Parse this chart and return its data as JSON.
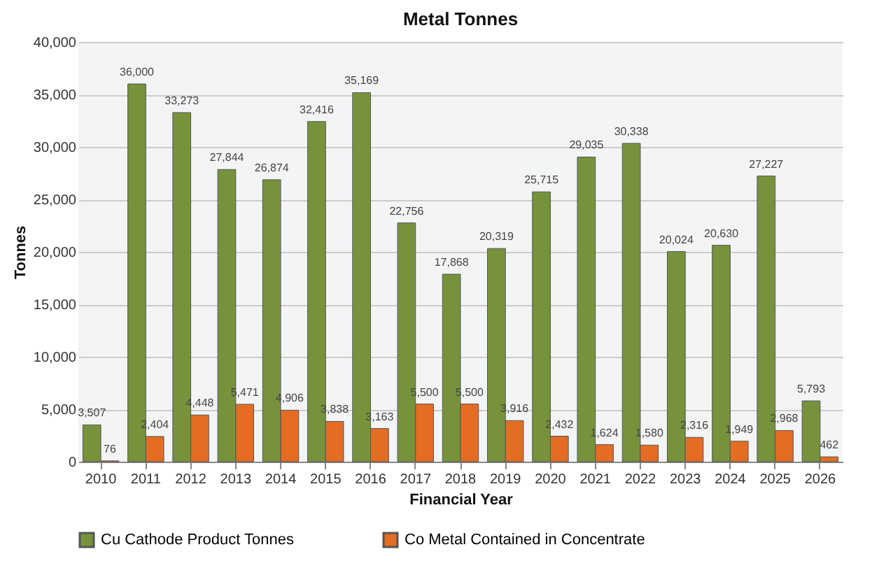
{
  "chart_data": {
    "type": "bar",
    "title": "Metal Tonnes",
    "xlabel": "Financial Year",
    "ylabel": "Tonnes",
    "categories": [
      "2010",
      "2011",
      "2012",
      "2013",
      "2014",
      "2015",
      "2016",
      "2017",
      "2018",
      "2019",
      "2020",
      "2021",
      "2022",
      "2023",
      "2024",
      "2025",
      "2026"
    ],
    "series": [
      {
        "name": "Cu Cathode Product Tonnes",
        "color": "#76933c",
        "values": [
          3507,
          36000,
          33273,
          27844,
          26874,
          32416,
          35169,
          22756,
          17868,
          20319,
          25715,
          29035,
          30338,
          20024,
          20630,
          27227,
          5793
        ],
        "value_labels": [
          "3,507",
          "36,000",
          "33,273",
          "27,844",
          "26,874",
          "32,416",
          "35,169",
          "22,756",
          "17,868",
          "20,319",
          "25,715",
          "29,035",
          "30,338",
          "20,024",
          "20,630",
          "27,227",
          "5,793"
        ]
      },
      {
        "name": "Co Metal Contained in Concentrate",
        "color": "#e46c23",
        "values": [
          76,
          2404,
          4448,
          5471,
          4906,
          3838,
          3163,
          5500,
          5500,
          3916,
          2432,
          1624,
          1580,
          2316,
          1949,
          2968,
          462
        ],
        "value_labels": [
          "76",
          "2,404",
          "4,448",
          "5,471",
          "4,906",
          "3,838",
          "3,163",
          "5,500",
          "5,500",
          "3,916",
          "2,432",
          "1,624",
          "1,580",
          "2,316",
          "1,949",
          "2,968",
          "462"
        ]
      }
    ],
    "ylim": [
      0,
      40000
    ],
    "yticks": [
      0,
      {
        "value": 5000,
        "label": "5,000"
      },
      {
        "value": 10000,
        "label": "10,000"
      },
      {
        "value": 15000,
        "label": "15,000"
      },
      {
        "value": 20000,
        "label": "20,000"
      },
      {
        "value": 25000,
        "label": "25,000"
      },
      {
        "value": 30000,
        "label": "30,000"
      },
      {
        "value": 35000,
        "label": "35,000"
      },
      {
        "value": 40000,
        "label": "40,000"
      }
    ],
    "grid": "y",
    "legend": "bottom"
  }
}
